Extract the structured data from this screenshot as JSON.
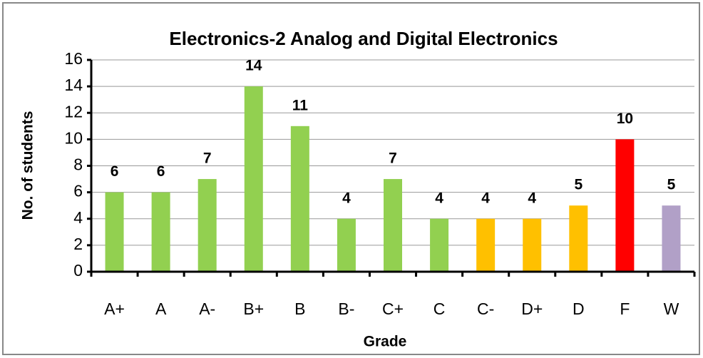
{
  "chart_data": {
    "type": "bar",
    "title": "Electronics-2 Analog and Digital Electronics",
    "x_label": "Grade",
    "y_label": "No. of students",
    "categories": [
      "A+",
      "A",
      "A-",
      "B+",
      "B",
      "B-",
      "C+",
      "C",
      "C-",
      "D+",
      "D",
      "F",
      "W"
    ],
    "values": [
      6,
      6,
      7,
      14,
      11,
      4,
      7,
      4,
      4,
      4,
      5,
      10,
      5
    ],
    "colors": [
      "#92d050",
      "#92d050",
      "#92d050",
      "#92d050",
      "#92d050",
      "#92d050",
      "#92d050",
      "#92d050",
      "#ffc000",
      "#ffc000",
      "#ffc000",
      "#ff0000",
      "#b1a0c7"
    ],
    "ylim": [
      0,
      16
    ],
    "yticks": [
      0,
      2,
      4,
      6,
      8,
      10,
      12,
      14,
      16
    ],
    "grid": true
  }
}
